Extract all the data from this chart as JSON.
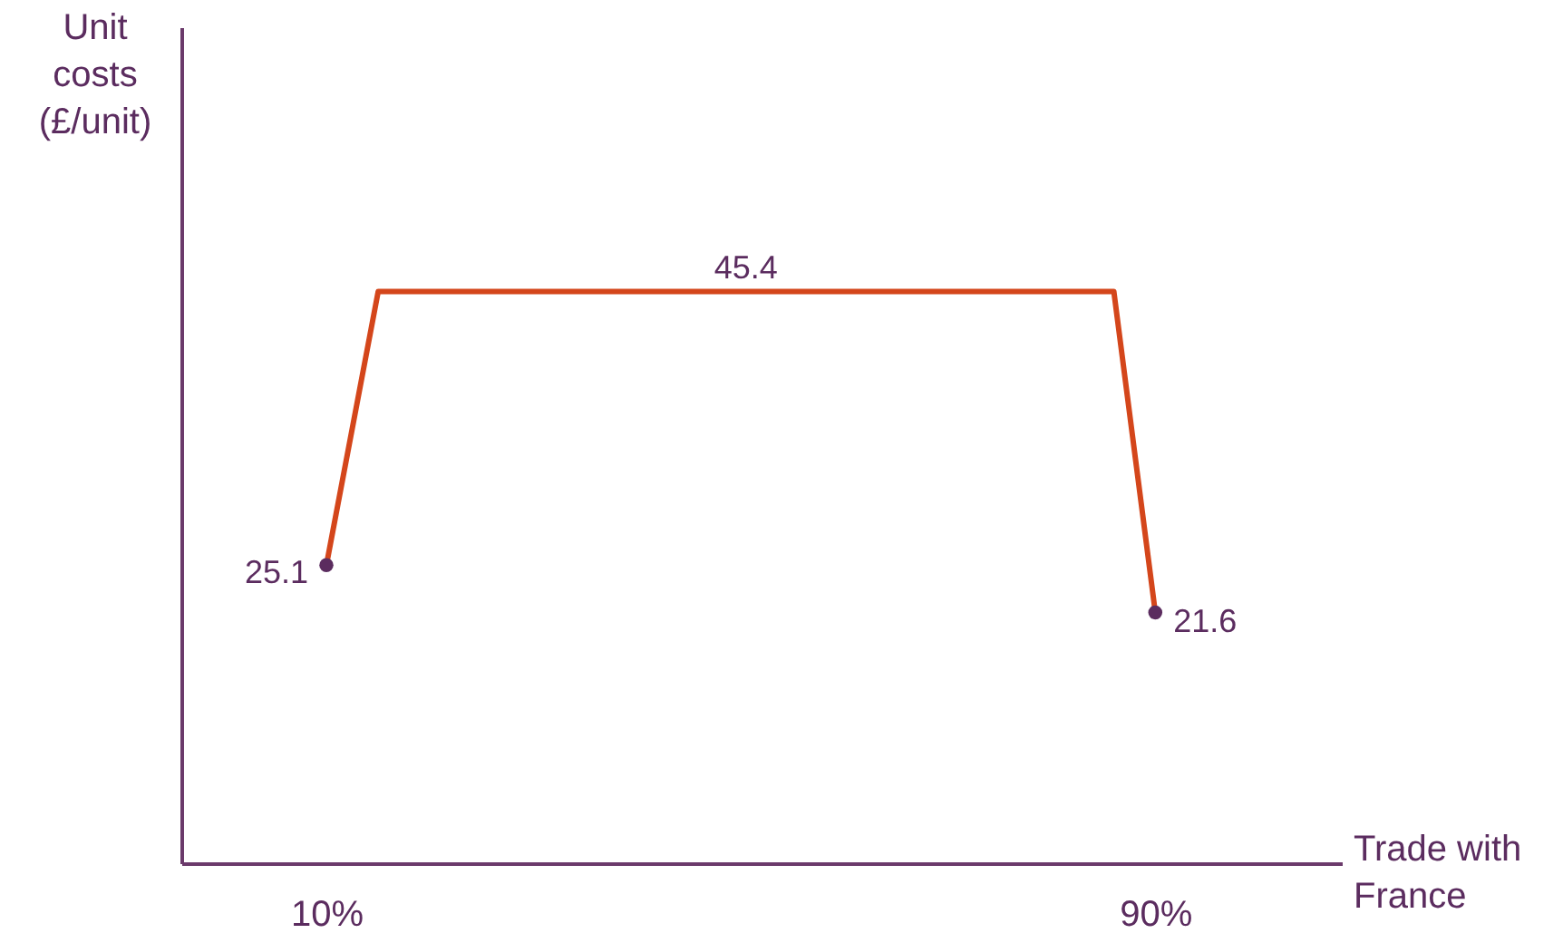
{
  "chart_data": {
    "type": "line",
    "xlabel": "Trade with France",
    "ylabel": "Unit costs (£/unit)",
    "xlim": [
      -4,
      108
    ],
    "ylim": [
      3,
      65
    ],
    "xticks": [
      {
        "value": 10,
        "label": "10%"
      },
      {
        "value": 90,
        "label": "90%"
      }
    ],
    "tick_labels": "x",
    "grid": false,
    "series": [
      {
        "type": "line",
        "color": "#d4461b",
        "marker": "none",
        "x": [
          10,
          15,
          86,
          90
        ],
        "values": [
          25.1,
          45.4,
          45.4,
          21.6
        ]
      },
      {
        "type": "scatter",
        "color": "#5b2c5f",
        "marker": "circle",
        "x": [
          10,
          90
        ],
        "values": [
          25.1,
          21.6
        ],
        "value_labels": [
          "25.1",
          "21.6"
        ]
      }
    ],
    "annotations": [
      {
        "text": "45.4",
        "x": 50.5,
        "y": 45.4
      }
    ]
  }
}
